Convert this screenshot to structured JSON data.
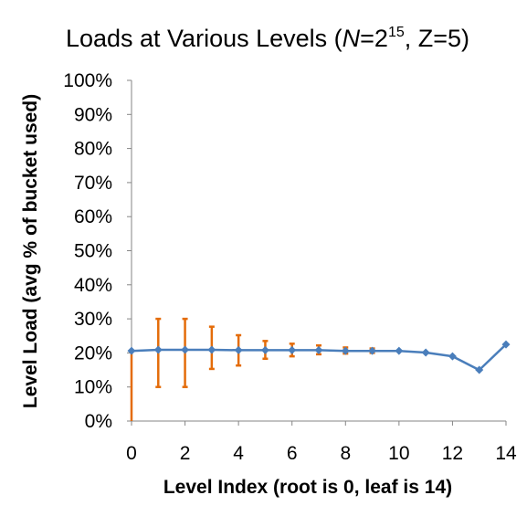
{
  "colors": {
    "series": "#4a7ebb",
    "error_bars": "#e46c0a",
    "axis": "#868686"
  },
  "chart_data": {
    "type": "line",
    "title": {
      "prefix": "Loads at Various Levels (",
      "n_var": "N",
      "n_eq": "=2",
      "n_exp": "15",
      "suffix": ", Z=5)"
    },
    "xlabel": "Level Index (root is 0, leaf is 14)",
    "ylabel": "Level Load (avg % of bucket used)",
    "xlim": [
      0,
      14
    ],
    "ylim": [
      0,
      100
    ],
    "x_ticks": [
      "0",
      "2",
      "4",
      "6",
      "8",
      "10",
      "12",
      "14"
    ],
    "y_ticks": [
      "0%",
      "10%",
      "20%",
      "30%",
      "40%",
      "50%",
      "60%",
      "70%",
      "80%",
      "90%",
      "100%"
    ],
    "grid": false,
    "legend": "none",
    "x": [
      0,
      1,
      2,
      3,
      4,
      5,
      6,
      7,
      8,
      9,
      10,
      11,
      12,
      13,
      14
    ],
    "series": [
      {
        "values": [
          20.6,
          20.9,
          20.9,
          20.9,
          20.8,
          20.8,
          20.8,
          20.8,
          20.6,
          20.6,
          20.6,
          20.1,
          19.0,
          15.0,
          22.5
        ],
        "error_low": [
          0,
          10.0,
          10.0,
          15.3,
          16.3,
          18.3,
          19.0,
          19.6,
          19.8,
          20.0,
          20.6,
          20.1,
          19.0,
          15.0,
          22.5
        ],
        "error_high": [
          20.6,
          30.0,
          30.0,
          27.7,
          25.2,
          23.5,
          22.7,
          22.2,
          21.6,
          21.3,
          20.6,
          20.1,
          19.0,
          15.0,
          22.5
        ]
      }
    ]
  }
}
